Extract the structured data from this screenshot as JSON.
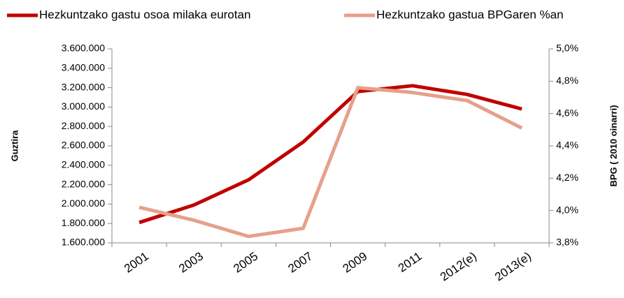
{
  "chart_data": {
    "type": "line",
    "categories": [
      "2001",
      "2003",
      "2005",
      "2007",
      "2009",
      "2011",
      "2012(e)",
      "2013(e)"
    ],
    "series": [
      {
        "name": "Hezkuntzako gastu osoa milaka eurotan",
        "color": "#c00000",
        "axis": "y",
        "values": [
          1810000,
          1990000,
          2250000,
          2640000,
          3160000,
          3220000,
          3130000,
          2980000
        ]
      },
      {
        "name": "Hezkuntzako gastua BPGaren %an",
        "color": "#e6a08a",
        "axis": "y2",
        "values": [
          4.02,
          3.94,
          3.84,
          3.89,
          4.76,
          4.73,
          4.68,
          4.51
        ]
      }
    ],
    "ylabel": "Guztira",
    "y2label": "BPG ( 2010 oinarri)",
    "ylim": [
      1600000,
      3600000
    ],
    "yticks": [
      {
        "value": 1600000,
        "label": "1.600.000"
      },
      {
        "value": 1800000,
        "label": "1.800.000"
      },
      {
        "value": 2000000,
        "label": "2.000.000"
      },
      {
        "value": 2200000,
        "label": "2.200.000"
      },
      {
        "value": 2400000,
        "label": "2.400.000"
      },
      {
        "value": 2600000,
        "label": "2.600.000"
      },
      {
        "value": 2800000,
        "label": "2.800.000"
      },
      {
        "value": 3000000,
        "label": "3.000.000"
      },
      {
        "value": 3200000,
        "label": "3.200.000"
      },
      {
        "value": 3400000,
        "label": "3.400.000"
      },
      {
        "value": 3600000,
        "label": "3.600.000"
      }
    ],
    "y2lim": [
      3.8,
      5.0
    ],
    "y2ticks": [
      {
        "value": 3.8,
        "label": "3,8%"
      },
      {
        "value": 4.0,
        "label": "4,0%"
      },
      {
        "value": 4.2,
        "label": "4,2%"
      },
      {
        "value": 4.4,
        "label": "4,4%"
      },
      {
        "value": 4.6,
        "label": "4,6%"
      },
      {
        "value": 4.8,
        "label": "4,8%"
      },
      {
        "value": 5.0,
        "label": "5,0%"
      }
    ],
    "legend": "top",
    "grid": false
  }
}
